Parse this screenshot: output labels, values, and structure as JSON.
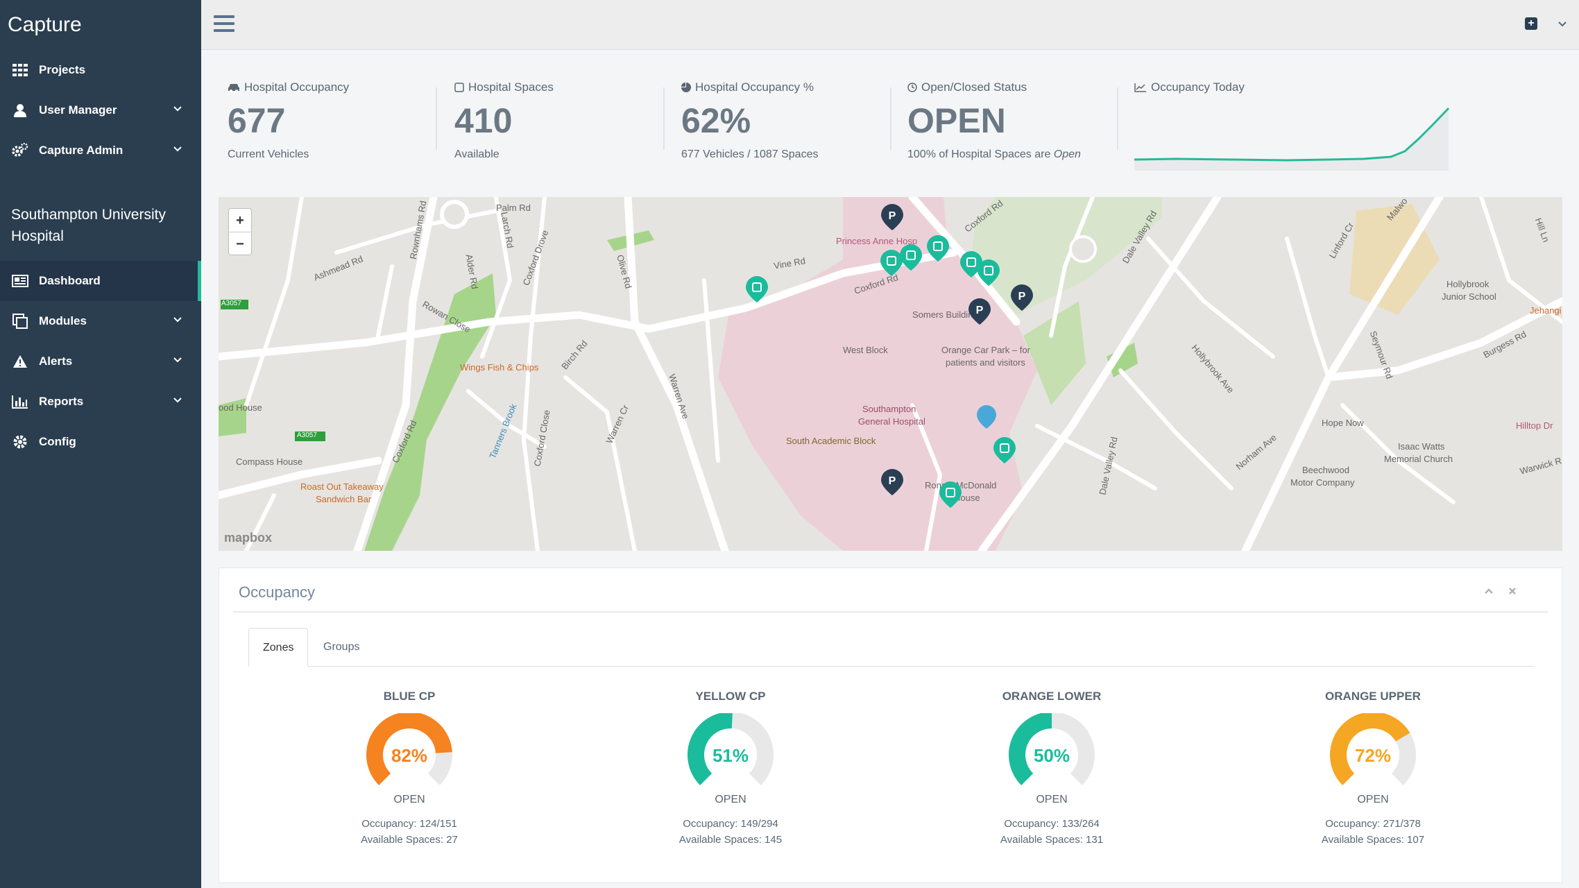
{
  "app": {
    "title": "Capture"
  },
  "sidebar": {
    "top_items": [
      {
        "label": "Projects",
        "icon": "grid-icon"
      },
      {
        "label": "User Manager",
        "icon": "user-icon"
      },
      {
        "label": "Capture Admin",
        "icon": "gears-icon"
      }
    ],
    "site_name": "Southampton University Hospital",
    "items": [
      {
        "label": "Dashboard",
        "icon": "dashboard-icon"
      },
      {
        "label": "Modules",
        "icon": "modules-icon"
      },
      {
        "label": "Alerts",
        "icon": "alert-icon"
      },
      {
        "label": "Reports",
        "icon": "bar-chart-icon"
      },
      {
        "label": "Config",
        "icon": "gear-icon"
      }
    ]
  },
  "stats": {
    "occupancy": {
      "label": "Hospital Occupancy",
      "value": "677",
      "sub": "Current Vehicles"
    },
    "spaces": {
      "label": "Hospital Spaces",
      "value": "410",
      "sub": "Available"
    },
    "percent": {
      "label": "Hospital Occupancy %",
      "value": "62%",
      "sub": "677 Vehicles / 1087 Spaces"
    },
    "status": {
      "label": "Open/Closed Status",
      "value": "OPEN",
      "sub_prefix": "100% of Hospital Spaces are ",
      "sub_em": "Open"
    },
    "today": {
      "label": "Occupancy Today"
    }
  },
  "map": {
    "attribution": "mapbox",
    "zoom_in": "+",
    "zoom_out": "−",
    "labels": [
      "Palm Rd",
      "Rownhams Rd",
      "Ashmead Rd",
      "Alder Rd",
      "Larch Rd",
      "Coxford Drove",
      "Olive Rd",
      "Vine Rd",
      "Princess Anne Hosp",
      "Coxford Rd",
      "Coxford Rd",
      "Somers Building",
      "West Block",
      "Orange Car Park – for",
      "patients and visitors",
      "Southampton",
      "General Hospital",
      "South Academic Block",
      "Ronald McDonald",
      "House",
      "Wings Fish & Chips",
      "Birch Rd",
      "Rowan Close",
      "Warren Ave",
      "Warren Cr",
      "Tanners Brook",
      "Coxford Close",
      "Coxford Rd",
      "Compass House",
      "Roast Out Takeaway",
      "Sandwich Bar",
      "ood House",
      "A3057",
      "A3057",
      "Dale Valley Rd",
      "Dale Valley Rd",
      "Hollybrook Ave",
      "Norham Ave",
      "Hope Now",
      "Beechwood",
      "Motor Company",
      "Isaac Watts",
      "Memorial Church",
      "Seymour Rd",
      "Linford Cr",
      "Burgess Rd",
      "Hollybrook",
      "Junior School",
      "Hilltop Dr",
      "Warwick R",
      "Jehangi",
      "Hill Ln",
      "Malwo"
    ]
  },
  "panel": {
    "title": "Occupancy",
    "tabs": [
      "Zones",
      "Groups"
    ],
    "gauges": [
      {
        "name": "BLUE CP",
        "percent": 82,
        "label": "82%",
        "color": "#f5831f",
        "status": "OPEN",
        "occupancy": "Occupancy: 124/151",
        "available": "Available Spaces: 27"
      },
      {
        "name": "YELLOW CP",
        "percent": 51,
        "label": "51%",
        "color": "#1abc9c",
        "status": "OPEN",
        "occupancy": "Occupancy: 149/294",
        "available": "Available Spaces: 145"
      },
      {
        "name": "ORANGE LOWER",
        "percent": 50,
        "label": "50%",
        "color": "#1abc9c",
        "status": "OPEN",
        "occupancy": "Occupancy: 133/264",
        "available": "Available Spaces: 131"
      },
      {
        "name": "ORANGE UPPER",
        "percent": 72,
        "label": "72%",
        "color": "#f5a623",
        "status": "OPEN",
        "occupancy": "Occupancy: 271/378",
        "available": "Available Spaces: 107"
      }
    ]
  },
  "colors": {
    "sidebar": "#2b3e50",
    "accent": "#26b99a",
    "pin_green": "#1abc9c",
    "pin_dark": "#2a3f54"
  }
}
